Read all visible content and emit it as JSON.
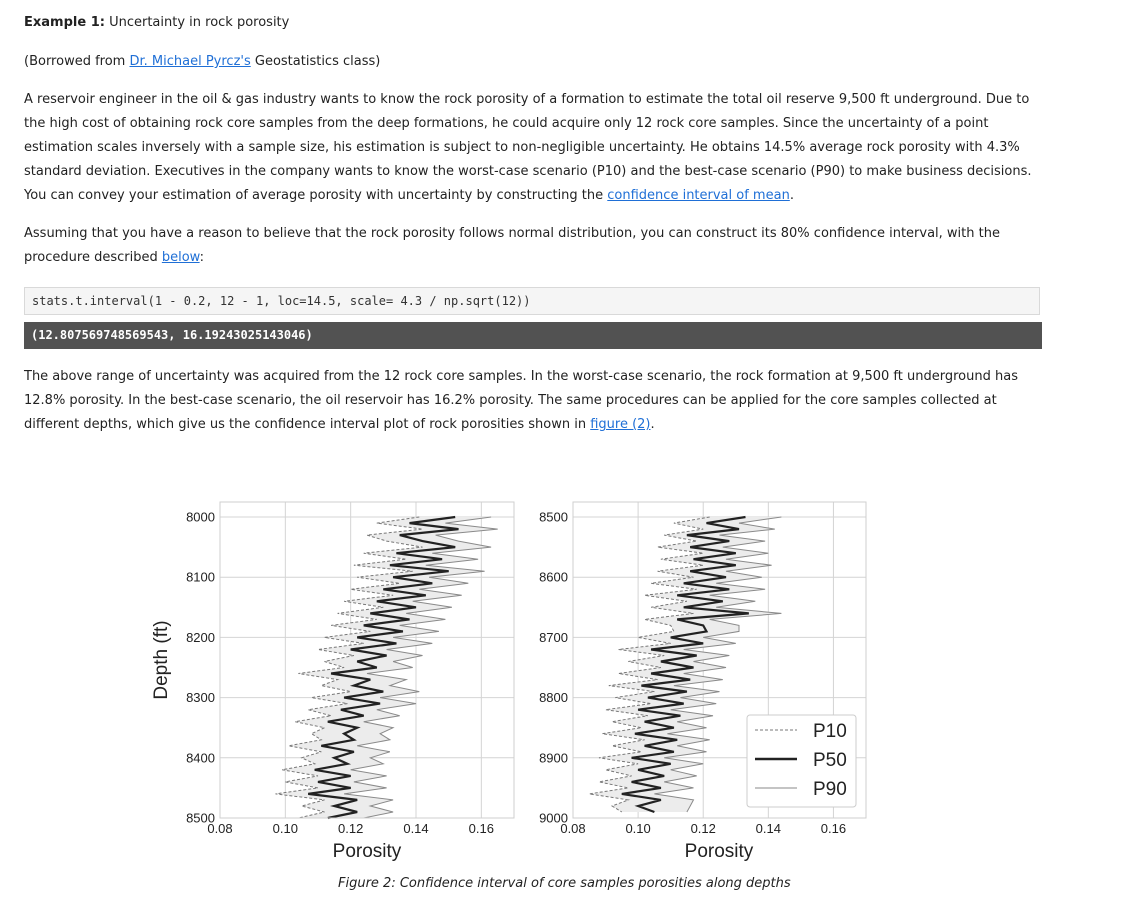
{
  "doc": {
    "title_bold": "Example 1:",
    "title_rest": " Uncertainty in rock porosity",
    "borrowed_pre": "(Borrowed from ",
    "borrowed_link": "Dr. Michael Pyrcz's",
    "borrowed_post": " Geostatistics class)",
    "para1_a": "A reservoir engineer in the oil & gas industry wants to know the rock porosity of a formation to estimate the total oil reserve 9,500 ft underground. Due to the high cost of obtaining rock core samples from the deep formations, he could acquire only 12 rock core samples. Since the uncertainty of a point estimation scales inversely with a sample size, his estimation is subject to non-negligible uncertainty. He obtains 14.5% average rock porosity with 4.3% standard deviation. Executives in the company wants to know the worst-case scenario (P10) and the best-case scenario (P90) to make business decisions. You can convey your estimation of average porosity with uncertainty by constructing the ",
    "para1_link": "confidence interval of mean",
    "para1_end": ".",
    "para2_a": "Assuming that you have a reason to believe that the rock porosity follows normal distribution, you can construct its 80% confidence interval, with the procedure described ",
    "para2_link": "below",
    "para2_end": ":",
    "code_input": "stats.t.interval(1 - 0.2, 12 - 1, loc=14.5, scale= 4.3 / np.sqrt(12))",
    "code_output": "(12.807569748569543, 16.19243025143046)",
    "para3_a": "The above range of uncertainty was acquired from the 12 rock core samples. In the worst-case scenario, the rock formation at 9,500 ft underground has 12.8% porosity. In the best-case scenario, the oil reservoir has 16.2% porosity. The same procedures can be applied for the core samples collected at different depths, which give us the confidence interval plot of rock porosities shown in ",
    "para3_link": "figure (2)",
    "para3_end": ".",
    "caption": "Figure 2: Confidence interval of core samples porosities along depths",
    "link_color": "#1f6fd6"
  },
  "chart_data": [
    {
      "type": "line",
      "xlabel": "Porosity",
      "ylabel": "Depth (ft)",
      "xlim": [
        0.08,
        0.17
      ],
      "ylim": [
        8500,
        7975
      ],
      "xticks": [
        "0.08",
        "0.10",
        "0.12",
        "0.14",
        "0.16"
      ],
      "yticks": [
        "8000",
        "8100",
        "8200",
        "8300",
        "8400",
        "8500"
      ],
      "grid": true,
      "depth_start": 8000,
      "depth_end": 8500,
      "series": [
        {
          "name": "P10",
          "style": "dashed",
          "color": "#777777",
          "values": [
            0.141,
            0.128,
            0.142,
            0.125,
            0.131,
            0.142,
            0.124,
            0.137,
            0.121,
            0.139,
            0.122,
            0.135,
            0.12,
            0.133,
            0.118,
            0.13,
            0.116,
            0.128,
            0.114,
            0.126,
            0.112,
            0.124,
            0.11,
            0.121,
            0.112,
            0.118,
            0.104,
            0.116,
            0.111,
            0.12,
            0.108,
            0.119,
            0.107,
            0.114,
            0.103,
            0.112,
            0.108,
            0.111,
            0.101,
            0.111,
            0.105,
            0.109,
            0.099,
            0.11,
            0.1,
            0.11,
            0.097,
            0.112,
            0.105,
            0.112,
            0.104
          ]
        },
        {
          "name": "P50",
          "style": "solid",
          "color": "#222222",
          "values": [
            0.152,
            0.138,
            0.153,
            0.135,
            0.142,
            0.152,
            0.134,
            0.148,
            0.132,
            0.15,
            0.133,
            0.145,
            0.13,
            0.143,
            0.128,
            0.14,
            0.126,
            0.138,
            0.124,
            0.136,
            0.122,
            0.134,
            0.12,
            0.131,
            0.122,
            0.128,
            0.114,
            0.126,
            0.121,
            0.13,
            0.118,
            0.129,
            0.117,
            0.124,
            0.113,
            0.122,
            0.118,
            0.121,
            0.111,
            0.121,
            0.115,
            0.119,
            0.109,
            0.12,
            0.11,
            0.12,
            0.107,
            0.122,
            0.115,
            0.122,
            0.113
          ]
        },
        {
          "name": "P90",
          "style": "solid",
          "color": "#8a8a8a",
          "values": [
            0.163,
            0.149,
            0.165,
            0.146,
            0.153,
            0.163,
            0.145,
            0.159,
            0.143,
            0.161,
            0.144,
            0.156,
            0.141,
            0.154,
            0.139,
            0.151,
            0.137,
            0.149,
            0.135,
            0.147,
            0.133,
            0.145,
            0.131,
            0.142,
            0.133,
            0.139,
            0.125,
            0.137,
            0.132,
            0.141,
            0.129,
            0.14,
            0.128,
            0.135,
            0.124,
            0.133,
            0.129,
            0.132,
            0.122,
            0.132,
            0.126,
            0.13,
            0.12,
            0.131,
            0.121,
            0.131,
            0.118,
            0.133,
            0.126,
            0.133,
            0.124
          ]
        }
      ]
    },
    {
      "type": "line",
      "xlabel": "Porosity",
      "ylabel": "",
      "xlim": [
        0.08,
        0.17
      ],
      "ylim": [
        9000,
        8475
      ],
      "xticks": [
        "0.08",
        "0.10",
        "0.12",
        "0.14",
        "0.16"
      ],
      "yticks": [
        "8500",
        "8600",
        "8700",
        "8800",
        "8900",
        "9000"
      ],
      "grid": true,
      "depth_start": 8500,
      "depth_end": 8990,
      "legend_position": "lower right",
      "legend": [
        "P10",
        "P50",
        "P90"
      ],
      "series": [
        {
          "name": "P10",
          "style": "dashed",
          "color": "#777777",
          "values": [
            0.122,
            0.111,
            0.12,
            0.108,
            0.118,
            0.106,
            0.12,
            0.107,
            0.12,
            0.106,
            0.117,
            0.104,
            0.118,
            0.102,
            0.115,
            0.104,
            0.117,
            0.102,
            0.11,
            0.111,
            0.1,
            0.11,
            0.094,
            0.108,
            0.097,
            0.107,
            0.094,
            0.106,
            0.091,
            0.105,
            0.093,
            0.104,
            0.09,
            0.103,
            0.092,
            0.101,
            0.089,
            0.102,
            0.092,
            0.101,
            0.088,
            0.1,
            0.09,
            0.098,
            0.088,
            0.097,
            0.085,
            0.097,
            0.092,
            0.095
          ]
        },
        {
          "name": "P50",
          "style": "solid",
          "color": "#222222",
          "values": [
            0.133,
            0.121,
            0.131,
            0.115,
            0.128,
            0.116,
            0.13,
            0.117,
            0.13,
            0.116,
            0.127,
            0.114,
            0.128,
            0.112,
            0.126,
            0.114,
            0.134,
            0.112,
            0.12,
            0.121,
            0.11,
            0.12,
            0.104,
            0.118,
            0.107,
            0.117,
            0.104,
            0.116,
            0.101,
            0.115,
            0.103,
            0.114,
            0.1,
            0.113,
            0.102,
            0.111,
            0.099,
            0.112,
            0.102,
            0.111,
            0.098,
            0.11,
            0.1,
            0.108,
            0.098,
            0.107,
            0.095,
            0.107,
            0.1,
            0.105
          ]
        },
        {
          "name": "P90",
          "style": "solid",
          "color": "#8a8a8a",
          "values": [
            0.144,
            0.131,
            0.142,
            0.125,
            0.139,
            0.126,
            0.14,
            0.127,
            0.141,
            0.127,
            0.138,
            0.124,
            0.139,
            0.122,
            0.136,
            0.124,
            0.144,
            0.122,
            0.131,
            0.131,
            0.12,
            0.13,
            0.114,
            0.128,
            0.117,
            0.127,
            0.114,
            0.126,
            0.111,
            0.125,
            0.113,
            0.124,
            0.11,
            0.123,
            0.112,
            0.121,
            0.109,
            0.122,
            0.112,
            0.121,
            0.108,
            0.12,
            0.11,
            0.118,
            0.108,
            0.117,
            0.105,
            0.117,
            0.116,
            0.115
          ]
        }
      ]
    }
  ]
}
